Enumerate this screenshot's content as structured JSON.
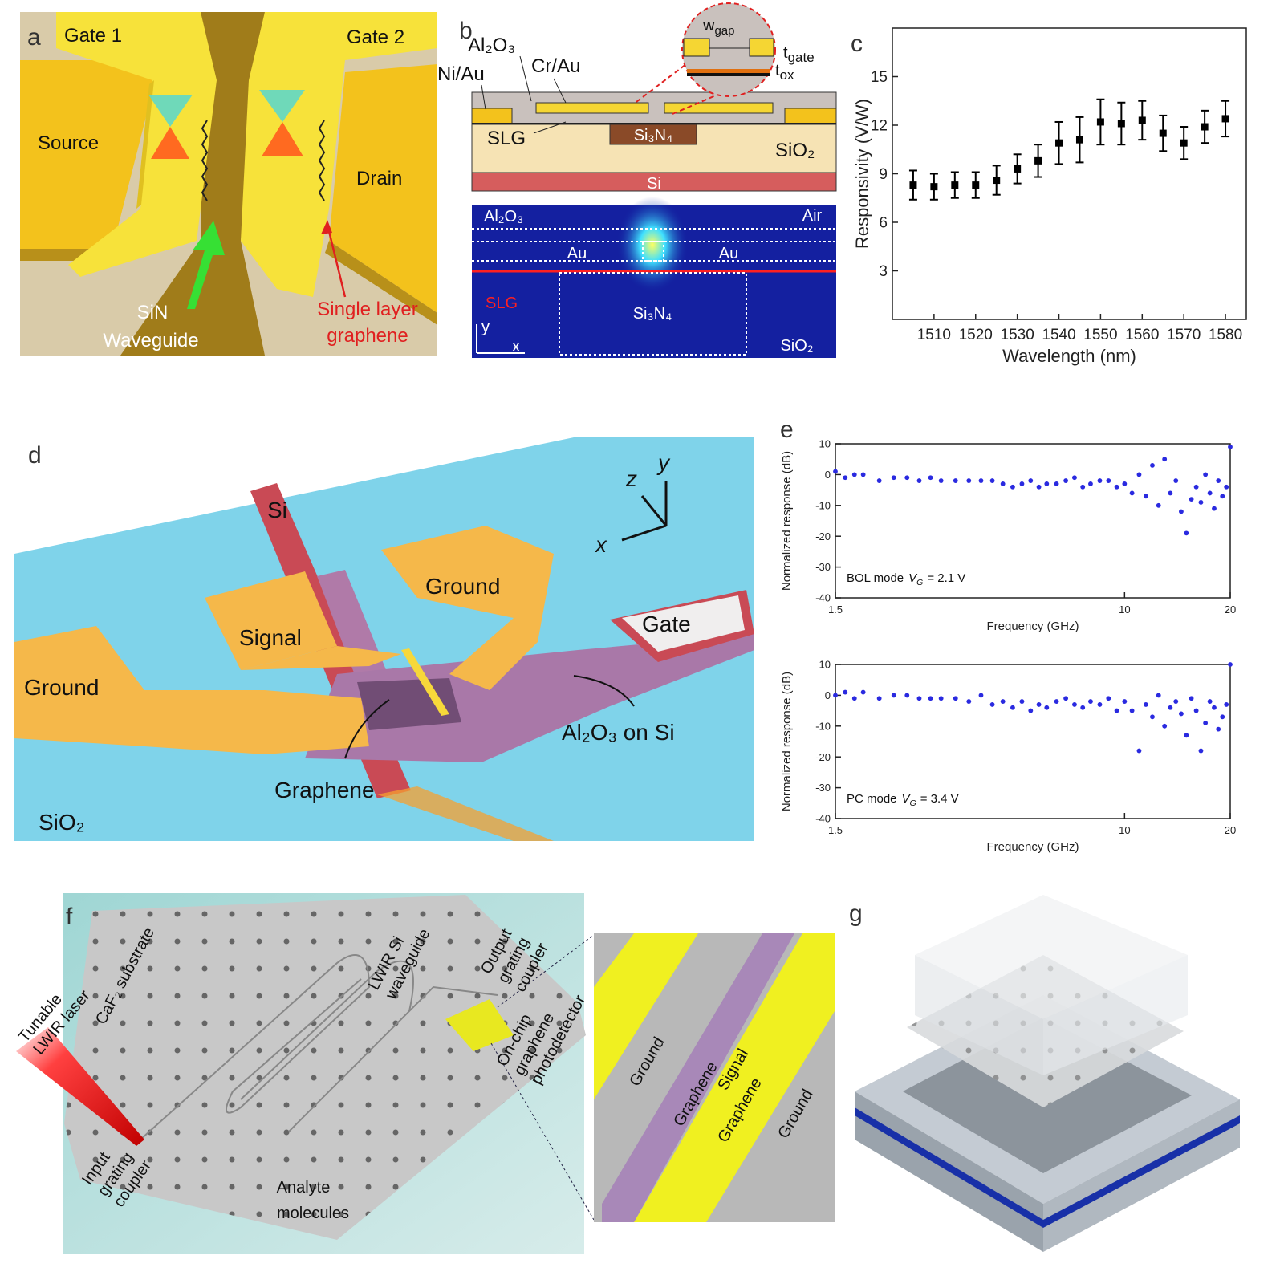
{
  "panels": {
    "a": {
      "label": "a",
      "gate_1": "Gate 1",
      "gate_2": "Gate 2",
      "source": "Source",
      "drain": "Drain",
      "waveguide": [
        "SiN",
        "Waveguide"
      ],
      "graphene": [
        "Single layer",
        "graphene"
      ]
    },
    "b": {
      "label": "b",
      "al2o3": "Al₂O₃",
      "ni_au": "Ni/Au",
      "cr_au": "Cr/Au",
      "w_gap": [
        "w",
        "gap"
      ],
      "t_gate": [
        "t",
        "gate"
      ],
      "t_ox": [
        "t",
        "ox"
      ],
      "slg": "SLG",
      "si3n4": "Si₃N₄",
      "sio2": "SiO₂",
      "si": "Si",
      "mode_map": {
        "al2o3": "Al₂O₃",
        "air": "Air",
        "au": [
          "Au",
          "Au"
        ],
        "slg": "SLG",
        "si3n4": "Si₃N₄",
        "sio2": "SiO₂",
        "axis_y": "y",
        "axis_x": "x"
      }
    },
    "c": {
      "label": "c"
    },
    "d": {
      "label": "d",
      "si": "Si",
      "grounds": [
        "Ground",
        "Ground"
      ],
      "signal": "Signal",
      "gate": "Gate",
      "al2o3_on_si": "Al₂O₃ on Si",
      "graphene": "Graphene",
      "sio2": "SiO₂",
      "axes": [
        "z",
        "y",
        "x"
      ]
    },
    "e": {
      "label": "e"
    },
    "f": {
      "label": "f",
      "laser": [
        "Tunable",
        "LWIR laser"
      ],
      "substrate": "CaF₂ substrate",
      "waveguide": [
        "LWIR Si",
        "waveguide"
      ],
      "output": [
        "Output",
        "grating",
        "coupler"
      ],
      "detector": [
        "On-chip",
        "graphene",
        "photodetector"
      ],
      "input": [
        "Input",
        "grating",
        "coupler"
      ],
      "analyte": [
        "Analyte",
        "molecules"
      ],
      "inset": [
        "Ground",
        "Graphene",
        "Signal",
        "Graphene",
        "Ground"
      ]
    },
    "g": {
      "label": "g"
    }
  },
  "chart_data": [
    {
      "type": "scatter",
      "xlabel": "Wavelength (nm)",
      "ylabel": "Responsivity (V/W)",
      "x": [
        1505,
        1510,
        1515,
        1520,
        1525,
        1530,
        1535,
        1540,
        1545,
        1550,
        1555,
        1560,
        1565,
        1570,
        1575,
        1580
      ],
      "values": [
        8.3,
        8.2,
        8.3,
        8.3,
        8.6,
        9.3,
        9.8,
        10.9,
        11.1,
        12.2,
        12.1,
        12.3,
        11.5,
        10.9,
        11.9,
        12.4
      ],
      "errors": [
        0.9,
        0.8,
        0.8,
        0.8,
        0.9,
        0.9,
        1.0,
        1.3,
        1.4,
        1.4,
        1.3,
        1.2,
        1.1,
        1.0,
        1.0,
        1.1
      ],
      "color": "#000000",
      "xlim": [
        1500,
        1585
      ],
      "xticks": [
        1510,
        1520,
        1530,
        1540,
        1550,
        1560,
        1570,
        1580
      ],
      "ylim": [
        0,
        18
      ],
      "yticks": [
        3,
        6,
        9,
        12,
        15
      ]
    },
    {
      "type": "scatter",
      "xscale": "log",
      "xlabel": "Frequency (GHz)",
      "ylabel": "Normalized response (dB)",
      "annotation": {
        "mode": "BOL mode",
        "variable": "V",
        "subscript": "G",
        "value": "= 2.1 V"
      },
      "x": [
        1.5,
        1.6,
        1.7,
        1.8,
        2.0,
        2.2,
        2.4,
        2.6,
        2.8,
        3.0,
        3.3,
        3.6,
        3.9,
        4.2,
        4.5,
        4.8,
        5.1,
        5.4,
        5.7,
        6.0,
        6.4,
        6.8,
        7.2,
        7.6,
        8.0,
        8.5,
        9.0,
        9.5,
        10,
        10.5,
        11,
        11.5,
        12,
        12.5,
        13,
        13.5,
        14,
        14.5,
        15,
        15.5,
        16,
        16.5,
        17,
        17.5,
        18,
        18.5,
        19,
        19.5,
        20
      ],
      "values": [
        1,
        -1,
        0,
        0,
        -2,
        -1,
        -1,
        -2,
        -1,
        -2,
        -2,
        -2,
        -2,
        -2,
        -3,
        -4,
        -3,
        -2,
        -4,
        -3,
        -3,
        -2,
        -1,
        -4,
        -3,
        -2,
        -2,
        -4,
        -3,
        -6,
        0,
        -7,
        3,
        -10,
        5,
        -6,
        -2,
        -12,
        -19,
        -8,
        -4,
        -9,
        0,
        -6,
        -11,
        -2,
        -7,
        -4,
        9
      ],
      "color": "#2a2ae0",
      "xlim": [
        1.5,
        20
      ],
      "xticks": [
        1.5,
        10,
        20
      ],
      "ylim": [
        -40,
        10
      ],
      "yticks": [
        -40,
        -30,
        -20,
        -10,
        0,
        10
      ]
    },
    {
      "type": "scatter",
      "xscale": "log",
      "xlabel": "Frequency (GHz)",
      "ylabel": "Normalized response (dB)",
      "annotation": {
        "mode": "PC mode",
        "variable": "V",
        "subscript": "G",
        "value": "= 3.4 V"
      },
      "x": [
        1.5,
        1.6,
        1.7,
        1.8,
        2.0,
        2.2,
        2.4,
        2.6,
        2.8,
        3.0,
        3.3,
        3.6,
        3.9,
        4.2,
        4.5,
        4.8,
        5.1,
        5.4,
        5.7,
        6.0,
        6.4,
        6.8,
        7.2,
        7.6,
        8.0,
        8.5,
        9.0,
        9.5,
        10,
        10.5,
        11,
        11.5,
        12,
        12.5,
        13,
        13.5,
        14,
        14.5,
        15,
        15.5,
        16,
        16.5,
        17,
        17.5,
        18,
        18.5,
        19,
        19.5,
        20
      ],
      "values": [
        0,
        1,
        -1,
        1,
        -1,
        0,
        0,
        -1,
        -1,
        -1,
        -1,
        -2,
        0,
        -3,
        -2,
        -4,
        -2,
        -5,
        -3,
        -4,
        -2,
        -1,
        -3,
        -4,
        -2,
        -3,
        -1,
        -5,
        -2,
        -5,
        -18,
        -3,
        -7,
        0,
        -10,
        -4,
        -2,
        -6,
        -13,
        -1,
        -5,
        -18,
        -9,
        -2,
        -4,
        -11,
        -7,
        -3,
        10
      ],
      "color": "#2a2ae0",
      "xlim": [
        1.5,
        20
      ],
      "xticks": [
        1.5,
        10,
        20
      ],
      "ylim": [
        -40,
        10
      ],
      "yticks": [
        -40,
        -30,
        -20,
        -10,
        0,
        10
      ]
    }
  ]
}
